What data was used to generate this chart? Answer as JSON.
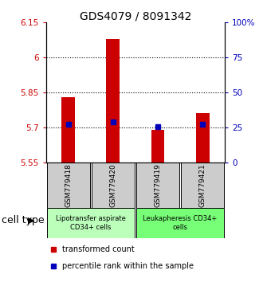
{
  "title": "GDS4079 / 8091342",
  "samples": [
    "GSM779418",
    "GSM779420",
    "GSM779419",
    "GSM779421"
  ],
  "bar_bottom": 5.55,
  "bar_tops": [
    5.83,
    6.08,
    5.69,
    5.76
  ],
  "blue_y": [
    5.712,
    5.722,
    5.703,
    5.712
  ],
  "ylim": [
    5.55,
    6.15
  ],
  "yticks_left": [
    5.55,
    5.7,
    5.85,
    6.0,
    6.15
  ],
  "yticks_right_pct": [
    0,
    25,
    50,
    75,
    100
  ],
  "ytick_labels_left": [
    "5.55",
    "5.7",
    "5.85",
    "6",
    "6.15"
  ],
  "ytick_labels_right": [
    "0",
    "25",
    "50",
    "75",
    "100%"
  ],
  "hlines": [
    5.7,
    5.85,
    6.0
  ],
  "cell_groups": [
    {
      "label": "Lipotransfer aspirate\nCD34+ cells",
      "indices": [
        0,
        1
      ],
      "color": "#bbffbb"
    },
    {
      "label": "Leukapheresis CD34+\ncells",
      "indices": [
        2,
        3
      ],
      "color": "#77ff77"
    }
  ],
  "bar_color": "#cc0000",
  "blue_color": "#0000bb",
  "bg_plot": "#ffffff",
  "bg_label": "#cccccc",
  "title_fontsize": 10,
  "tick_fontsize": 7.5,
  "sample_fontsize": 6.5,
  "group_fontsize": 6,
  "legend_fontsize": 7,
  "cell_type_fontsize": 9
}
